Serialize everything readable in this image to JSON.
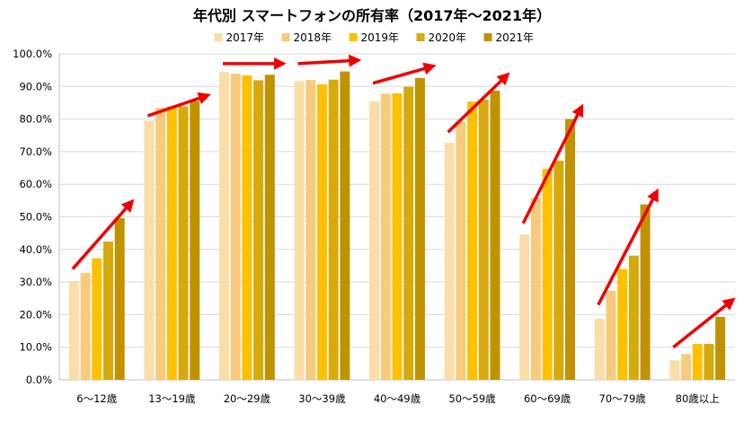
{
  "colors": {
    "series": [
      "#FBDDA8",
      "#F8CA7B",
      "#FFC000",
      "#D6A90D",
      "#C09200"
    ],
    "arrow": "#EE0000",
    "grid": "#D9D9D9",
    "axis": "#BFBFBF"
  },
  "chart_data": {
    "type": "bar",
    "title": "年代別 スマートフォンの所有率（2017年～2021年）",
    "xlabel": "",
    "ylabel": "",
    "ylim": [
      0,
      100
    ],
    "y_ticks": [
      "0.0%",
      "10.0%",
      "20.0%",
      "30.0%",
      "40.0%",
      "50.0%",
      "60.0%",
      "70.0%",
      "80.0%",
      "90.0%",
      "100.0%"
    ],
    "legend_position": "top",
    "grid": true,
    "categories": [
      "6～12歳",
      "13～19歳",
      "20～29歳",
      "30～39歳",
      "40～49歳",
      "50～59歳",
      "60～69歳",
      "70～79歳",
      "80歳以上"
    ],
    "series": [
      {
        "name": "2017年",
        "values": [
          30.3,
          79.5,
          94.5,
          91.7,
          85.5,
          72.7,
          44.6,
          18.7,
          6.0
        ]
      },
      {
        "name": "2018年",
        "values": [
          32.8,
          83.5,
          93.9,
          92.0,
          87.8,
          79.2,
          55.9,
          27.3,
          7.9
        ]
      },
      {
        "name": "2019年",
        "values": [
          37.3,
          83.9,
          93.4,
          90.7,
          87.9,
          85.4,
          64.7,
          34.0,
          11.0
        ]
      },
      {
        "name": "2020年",
        "values": [
          42.4,
          83.9,
          91.9,
          92.1,
          89.9,
          86.0,
          67.2,
          38.1,
          11.0
        ]
      },
      {
        "name": "2021年",
        "values": [
          49.6,
          85.5,
          93.6,
          94.6,
          92.6,
          88.7,
          80.0,
          53.8,
          19.3
        ]
      }
    ],
    "trend_arrows": [
      [
        34,
        54
      ],
      [
        81,
        87
      ],
      [
        97,
        97
      ],
      [
        97,
        98
      ],
      [
        91,
        96
      ],
      [
        76,
        93
      ],
      [
        48,
        83
      ],
      [
        23,
        57
      ],
      [
        10,
        24
      ]
    ]
  }
}
